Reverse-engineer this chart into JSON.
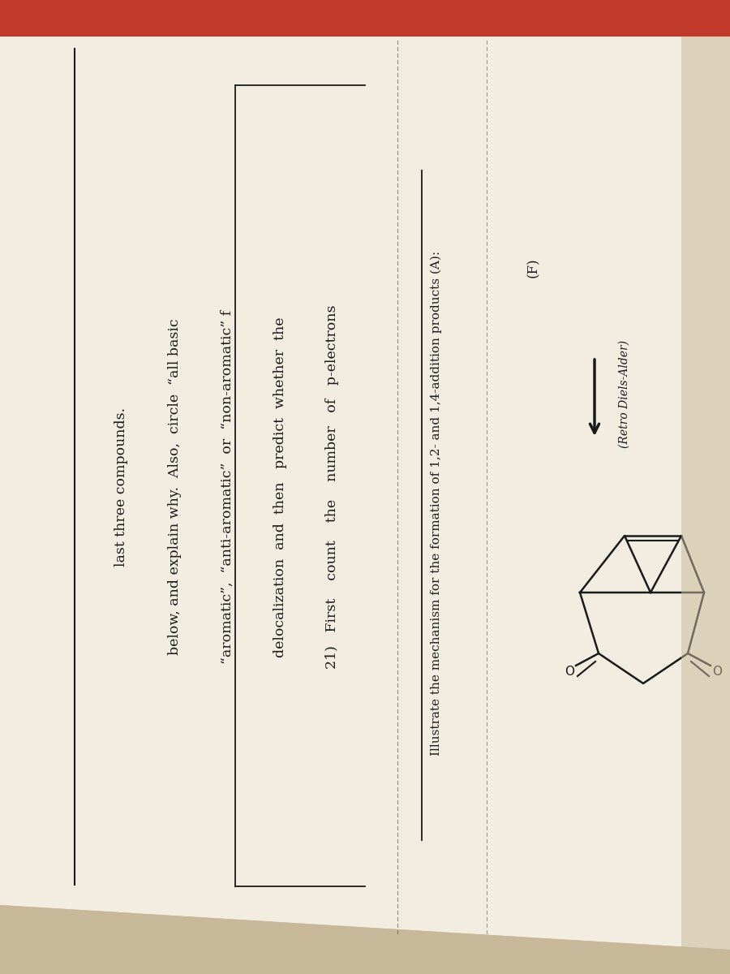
{
  "bg_color_top": "#c8b89a",
  "bg_color_main": "#e8dfc8",
  "paper_color": "#f2ede0",
  "text_color": "#1a1a1a",
  "line_color": "#1a1a1a",
  "dotted_color": "#444444",
  "figsize": [
    9.0,
    12.0
  ],
  "dpi": 100,
  "lines": [
    "21)   First    count    the    number   of   p-electrons",
    "delocalization  and  then   predict  whether  the",
    "“aromatic”,  “anti-aromatic”  or  “non-aromatic” f",
    "below, and explain why.  Also,  circle  “all basic",
    "last three compounds."
  ],
  "title_text": "Illustrate the mechanism for the formation of 1,2- and 1,4-addition products (A):",
  "label_f": "(F)",
  "label_retro": "(Retro Diels-Alder)"
}
